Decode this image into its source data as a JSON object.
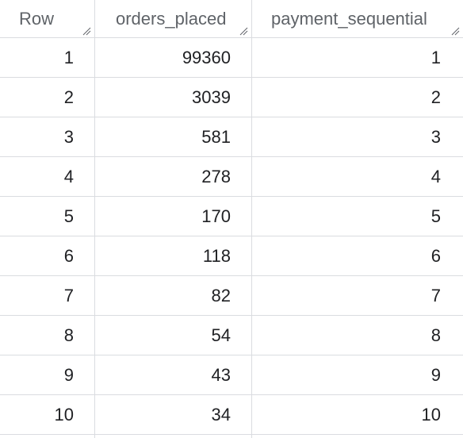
{
  "table": {
    "columns": [
      {
        "label": "Row"
      },
      {
        "label": "orders_placed"
      },
      {
        "label": "payment_sequential"
      }
    ],
    "rows": [
      {
        "row": "1",
        "orders_placed": "99360",
        "payment_sequential": "1"
      },
      {
        "row": "2",
        "orders_placed": "3039",
        "payment_sequential": "2"
      },
      {
        "row": "3",
        "orders_placed": "581",
        "payment_sequential": "3"
      },
      {
        "row": "4",
        "orders_placed": "278",
        "payment_sequential": "4"
      },
      {
        "row": "5",
        "orders_placed": "170",
        "payment_sequential": "5"
      },
      {
        "row": "6",
        "orders_placed": "118",
        "payment_sequential": "6"
      },
      {
        "row": "7",
        "orders_placed": "82",
        "payment_sequential": "7"
      },
      {
        "row": "8",
        "orders_placed": "54",
        "payment_sequential": "8"
      },
      {
        "row": "9",
        "orders_placed": "43",
        "payment_sequential": "9"
      },
      {
        "row": "10",
        "orders_placed": "34",
        "payment_sequential": "10"
      }
    ]
  },
  "icons": {
    "column_resize": "resize-handle-icon"
  },
  "colors": {
    "header_text": "#5f6368",
    "cell_text": "#202124",
    "grid_line": "#dadce0"
  }
}
